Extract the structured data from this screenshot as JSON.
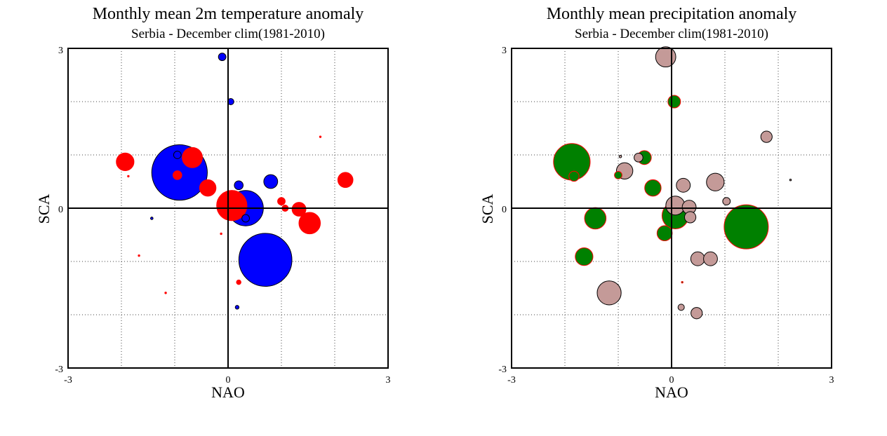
{
  "chart_data": [
    {
      "type": "scatter",
      "title": "Monthly mean 2m temperature anomaly",
      "subtitle": "Serbia - December  clim(1981-2010)",
      "xlabel": "NAO",
      "ylabel": "SCA",
      "xlim": [
        -3,
        3
      ],
      "ylim": [
        -3,
        3
      ],
      "xticklabels": [
        "-3",
        "0",
        "3"
      ],
      "yticklabels": [
        "3",
        "0",
        "-3"
      ],
      "grid": true,
      "bubble_scale": "anomaly magnitude",
      "colors": {
        "positive": "#ff0000",
        "negative": "#0000ff",
        "edge_neg": "#000000",
        "edge_pos": "#ff0000"
      },
      "points": [
        {
          "x": -0.11,
          "y": 2.84,
          "anomaly": -0.3
        },
        {
          "x": 0.05,
          "y": 2.0,
          "anomaly": -0.25
        },
        {
          "x": -0.91,
          "y": 0.67,
          "anomaly": -2.2
        },
        {
          "x": -0.95,
          "y": 1.0,
          "anomaly": -0.3
        },
        {
          "x": 0.2,
          "y": 0.43,
          "anomaly": -0.35
        },
        {
          "x": 0.8,
          "y": 0.5,
          "anomaly": -0.55
        },
        {
          "x": 0.33,
          "y": 0.0,
          "anomaly": -1.4
        },
        {
          "x": 0.33,
          "y": -0.19,
          "anomaly": -0.3
        },
        {
          "x": 0.7,
          "y": -0.97,
          "anomaly": -2.1
        },
        {
          "x": 0.17,
          "y": -1.86,
          "anomaly": -0.15
        },
        {
          "x": -1.43,
          "y": -0.19,
          "anomaly": -0.1
        },
        {
          "x": -1.93,
          "y": 0.87,
          "anomaly": 0.7
        },
        {
          "x": -0.67,
          "y": 0.95,
          "anomaly": 0.8
        },
        {
          "x": -0.95,
          "y": 0.62,
          "anomaly": 0.35
        },
        {
          "x": -0.38,
          "y": 0.38,
          "anomaly": 0.65
        },
        {
          "x": 0.07,
          "y": 0.05,
          "anomaly": 1.2
        },
        {
          "x": 1.0,
          "y": 0.13,
          "anomaly": 0.3
        },
        {
          "x": 1.07,
          "y": 0.0,
          "anomaly": 0.25
        },
        {
          "x": 1.33,
          "y": -0.02,
          "anomaly": 0.55
        },
        {
          "x": 1.53,
          "y": -0.28,
          "anomaly": 0.85
        },
        {
          "x": 2.2,
          "y": 0.53,
          "anomaly": 0.6
        },
        {
          "x": 0.2,
          "y": -1.39,
          "anomaly": 0.18
        },
        {
          "x": 1.73,
          "y": 1.34,
          "anomaly": 0.05
        },
        {
          "x": -0.13,
          "y": -0.48,
          "anomaly": 0.04
        },
        {
          "x": -1.67,
          "y": -0.89,
          "anomaly": 0.04
        },
        {
          "x": -1.87,
          "y": 0.6,
          "anomaly": 0.02
        },
        {
          "x": -1.17,
          "y": -1.59,
          "anomaly": 0.02
        }
      ]
    },
    {
      "type": "scatter",
      "title": "Monthly mean precipitation anomaly",
      "subtitle": "Serbia - December  clim(1981-2010)",
      "xlabel": "NAO",
      "ylabel": "SCA",
      "xlim": [
        -3,
        3
      ],
      "ylim": [
        -3,
        3
      ],
      "xticklabels": [
        "-3",
        "0",
        "3"
      ],
      "yticklabels": [
        "3",
        "0",
        "-3"
      ],
      "grid": true,
      "bubble_scale": "anomaly magnitude",
      "colors": {
        "positive": "#008000",
        "negative": "#c49a98",
        "edge_neg": "#000000",
        "edge_pos": "#ff0000"
      },
      "points": [
        {
          "x": -0.11,
          "y": 2.84,
          "anomaly": -0.8
        },
        {
          "x": 0.05,
          "y": 2.0,
          "anomaly": 0.5
        },
        {
          "x": 1.78,
          "y": 1.34,
          "anomaly": -0.45
        },
        {
          "x": -1.87,
          "y": 0.87,
          "anomaly": 1.45
        },
        {
          "x": -1.83,
          "y": 0.6,
          "anomaly": 0.4
        },
        {
          "x": -0.88,
          "y": 0.7,
          "anomaly": -0.65
        },
        {
          "x": -0.62,
          "y": 0.95,
          "anomaly": -0.35
        },
        {
          "x": -0.51,
          "y": 0.95,
          "anomaly": 0.55
        },
        {
          "x": -1.0,
          "y": 0.62,
          "anomaly": 0.3
        },
        {
          "x": -0.96,
          "y": 0.97,
          "anomaly": -0.1
        },
        {
          "x": -0.35,
          "y": 0.38,
          "anomaly": 0.65
        },
        {
          "x": 0.22,
          "y": 0.43,
          "anomaly": -0.55
        },
        {
          "x": 0.82,
          "y": 0.49,
          "anomaly": -0.7
        },
        {
          "x": 0.07,
          "y": 0.05,
          "anomaly": -0.75
        },
        {
          "x": 0.33,
          "y": 0.02,
          "anomaly": -0.55
        },
        {
          "x": 0.35,
          "y": -0.17,
          "anomaly": -0.45
        },
        {
          "x": 1.03,
          "y": 0.13,
          "anomaly": -0.3
        },
        {
          "x": 0.07,
          "y": -0.14,
          "anomaly": 1.05
        },
        {
          "x": 1.4,
          "y": -0.35,
          "anomaly": 1.75
        },
        {
          "x": -1.43,
          "y": -0.19,
          "anomaly": 0.85
        },
        {
          "x": -0.13,
          "y": -0.47,
          "anomaly": 0.6
        },
        {
          "x": -1.64,
          "y": -0.91,
          "anomaly": 0.7
        },
        {
          "x": 0.49,
          "y": -0.95,
          "anomaly": -0.55
        },
        {
          "x": 0.73,
          "y": -0.95,
          "anomaly": -0.55
        },
        {
          "x": -1.17,
          "y": -1.59,
          "anomaly": -0.95
        },
        {
          "x": 0.18,
          "y": -1.86,
          "anomaly": -0.25
        },
        {
          "x": 0.47,
          "y": -1.97,
          "anomaly": -0.45
        },
        {
          "x": 2.23,
          "y": 0.53,
          "anomaly": -0.05
        },
        {
          "x": 0.2,
          "y": -1.39,
          "anomaly": 0.03
        }
      ]
    }
  ]
}
